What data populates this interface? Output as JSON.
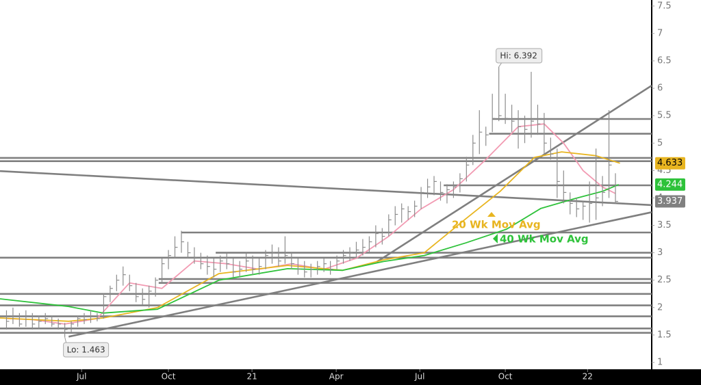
{
  "chart_data": {
    "type": "ohlc",
    "bar_color": "#8c8c8c",
    "line_color": "#7f7f7f",
    "x": [
      1,
      2,
      3,
      4,
      5,
      6,
      7,
      8,
      9,
      10,
      11,
      12,
      13,
      14,
      15,
      16,
      17,
      18,
      19,
      20,
      21,
      22,
      23,
      24,
      25,
      26,
      27,
      28,
      29,
      30,
      31,
      32,
      33,
      34,
      35,
      36,
      37,
      38,
      39,
      40,
      41,
      42,
      43,
      44,
      45,
      46,
      47,
      48,
      49,
      50,
      51,
      52,
      53,
      54,
      55,
      56,
      57,
      58,
      59,
      60,
      61,
      62,
      63,
      64,
      65,
      66,
      67,
      68,
      69,
      70,
      71,
      72,
      73,
      74,
      75,
      76,
      77,
      78,
      79,
      80,
      81,
      82,
      83,
      84,
      85,
      86,
      87,
      88,
      89,
      90,
      91,
      92,
      93,
      94,
      95
    ],
    "high": [
      1.95,
      2.0,
      1.9,
      1.95,
      1.9,
      1.85,
      1.9,
      1.85,
      1.8,
      1.72,
      1.75,
      1.85,
      1.9,
      1.95,
      1.9,
      2.25,
      2.4,
      2.6,
      2.75,
      2.6,
      2.45,
      2.35,
      2.4,
      2.55,
      2.9,
      3.05,
      3.3,
      3.4,
      3.2,
      3.1,
      3.0,
      2.95,
      2.9,
      2.95,
      3.0,
      2.9,
      2.85,
      3.0,
      2.95,
      2.9,
      3.05,
      3.15,
      3.1,
      3.3,
      3.0,
      2.9,
      2.85,
      2.8,
      2.85,
      2.9,
      2.85,
      2.95,
      3.05,
      3.1,
      3.2,
      3.25,
      3.3,
      3.5,
      3.45,
      3.7,
      3.85,
      3.9,
      3.85,
      3.95,
      4.2,
      4.35,
      4.4,
      4.3,
      4.25,
      4.3,
      4.45,
      4.75,
      5.15,
      5.6,
      5.3,
      5.9,
      6.392,
      5.9,
      5.7,
      5.6,
      5.5,
      6.3,
      5.7,
      5.55,
      5.1,
      4.9,
      4.5,
      4.1,
      4.0,
      3.95,
      4.3,
      4.9,
      4.4,
      5.6,
      4.45
    ],
    "low": [
      1.6,
      1.7,
      1.65,
      1.65,
      1.6,
      1.62,
      1.7,
      1.65,
      1.6,
      1.463,
      1.55,
      1.65,
      1.7,
      1.72,
      1.75,
      1.8,
      2.1,
      2.3,
      2.4,
      2.3,
      2.1,
      2.05,
      2.0,
      2.2,
      2.45,
      2.7,
      2.9,
      3.0,
      2.9,
      2.8,
      2.7,
      2.6,
      2.55,
      2.65,
      2.7,
      2.55,
      2.55,
      2.65,
      2.6,
      2.6,
      2.7,
      2.8,
      2.75,
      2.8,
      2.7,
      2.6,
      2.55,
      2.55,
      2.6,
      2.65,
      2.6,
      2.7,
      2.8,
      2.85,
      2.9,
      2.95,
      3.0,
      3.1,
      3.15,
      3.3,
      3.5,
      3.55,
      3.6,
      3.65,
      3.8,
      4.0,
      4.05,
      3.95,
      3.9,
      4.0,
      4.1,
      4.3,
      4.6,
      4.8,
      4.95,
      5.2,
      5.4,
      5.35,
      5.2,
      4.9,
      5.0,
      5.1,
      5.15,
      4.8,
      4.7,
      4.0,
      3.9,
      3.7,
      3.65,
      3.6,
      3.55,
      3.6,
      3.85,
      4.0,
      3.9
    ],
    "close": [
      1.75,
      1.85,
      1.7,
      1.85,
      1.7,
      1.75,
      1.8,
      1.7,
      1.7,
      1.6,
      1.7,
      1.8,
      1.78,
      1.85,
      1.8,
      2.2,
      2.35,
      2.5,
      2.6,
      2.4,
      2.2,
      2.15,
      2.3,
      2.5,
      2.8,
      2.95,
      3.1,
      3.2,
      3.0,
      2.9,
      2.8,
      2.75,
      2.7,
      2.85,
      2.8,
      2.65,
      2.7,
      2.85,
      2.7,
      2.75,
      2.95,
      3.0,
      2.85,
      2.95,
      2.8,
      2.7,
      2.65,
      2.7,
      2.75,
      2.8,
      2.7,
      2.85,
      2.95,
      3.0,
      3.05,
      3.1,
      3.2,
      3.35,
      3.3,
      3.6,
      3.7,
      3.8,
      3.75,
      3.85,
      4.1,
      4.2,
      4.3,
      4.1,
      4.15,
      4.2,
      4.35,
      4.6,
      5.0,
      5.2,
      5.15,
      5.45,
      5.5,
      5.45,
      5.4,
      5.3,
      5.25,
      5.4,
      5.35,
      5.0,
      4.8,
      4.3,
      4.1,
      3.9,
      3.8,
      3.85,
      3.9,
      4.0,
      4.1,
      4.6,
      3.937
    ],
    "series": [
      {
        "color": "#f29ab2",
        "x": [
          1,
          5,
          10,
          15,
          20,
          25,
          30,
          35,
          40,
          45,
          50,
          55,
          60,
          65,
          70,
          75,
          80,
          84,
          87,
          90,
          93,
          95
        ],
        "values": [
          1.8,
          1.78,
          1.7,
          1.8,
          2.45,
          2.35,
          2.85,
          2.8,
          2.7,
          2.8,
          2.7,
          2.9,
          3.3,
          3.8,
          4.15,
          4.7,
          5.3,
          5.35,
          5.0,
          4.5,
          4.2,
          4.08
        ]
      },
      {
        "name": "20 Wk Mov Avg",
        "color": "#e8b520",
        "x": [
          0,
          10.6,
          15.9,
          24.3,
          33.8,
          44.4,
          52.9,
          59.2,
          65.5,
          71.9,
          77.2,
          82.5,
          86.7,
          92,
          95.7
        ],
        "values": [
          1.81,
          1.75,
          1.81,
          2.0,
          2.62,
          2.77,
          2.68,
          2.87,
          3.0,
          3.62,
          4.12,
          4.74,
          4.84,
          4.77,
          4.633
        ]
      },
      {
        "name": "40 Wk Mov Avg",
        "color": "#2ec23a",
        "x": [
          0,
          10.6,
          15.9,
          24.3,
          33.8,
          44.4,
          52.9,
          59.2,
          65.5,
          71.9,
          78.2,
          83.5,
          88.8,
          93,
          95.5
        ],
        "values": [
          2.16,
          2.02,
          1.9,
          1.97,
          2.5,
          2.71,
          2.68,
          2.84,
          2.95,
          3.18,
          3.43,
          3.81,
          3.99,
          4.12,
          4.244
        ]
      }
    ],
    "lines": [
      {
        "x": [
          76,
          100.6
        ],
        "values": [
          5.44,
          5.44
        ]
      },
      {
        "x": [
          75.5,
          100.6
        ],
        "values": [
          5.17,
          5.17
        ]
      },
      {
        "x": [
          0,
          100.6
        ],
        "values": [
          4.73,
          4.73
        ]
      },
      {
        "x": [
          0,
          100.6
        ],
        "values": [
          4.67,
          4.67
        ]
      },
      {
        "x": [
          68.5,
          100.6
        ],
        "values": [
          4.23,
          4.23
        ]
      },
      {
        "x": [
          28,
          100.6
        ],
        "values": [
          3.37,
          3.37
        ]
      },
      {
        "x": [
          33.3,
          100.6
        ],
        "values": [
          3.0,
          3.0
        ]
      },
      {
        "x": [
          0,
          100.6
        ],
        "values": [
          2.91,
          2.91
        ]
      },
      {
        "x": [
          24.5,
          100.6
        ],
        "values": [
          2.52,
          2.52
        ]
      },
      {
        "x": [
          24.5,
          100.6
        ],
        "values": [
          2.45,
          2.45
        ]
      },
      {
        "x": [
          0,
          100.6
        ],
        "values": [
          2.25,
          2.25
        ]
      },
      {
        "x": [
          0,
          100.6
        ],
        "values": [
          2.04,
          2.04
        ]
      },
      {
        "x": [
          0,
          100.6
        ],
        "values": [
          1.84,
          1.84
        ]
      },
      {
        "x": [
          0,
          100.6
        ],
        "values": [
          1.62,
          1.62
        ]
      },
      {
        "x": [
          0,
          100.6
        ],
        "values": [
          1.54,
          1.54
        ]
      },
      {
        "x": [
          0,
          100.6
        ],
        "values": [
          4.49,
          3.87
        ]
      },
      {
        "x": [
          10.6,
          100.6
        ],
        "values": [
          1.47,
          3.74
        ]
      },
      {
        "x": [
          58.1,
          100.6
        ],
        "values": [
          2.83,
          6.05
        ]
      }
    ],
    "annotations": {
      "high": "Hi: 6.392",
      "low": "Lo: 1.463"
    },
    "xlim": [
      0,
      100.6
    ],
    "xticks": [
      {
        "value": 12.6,
        "label": "Jul"
      },
      {
        "value": 26,
        "label": "Oct"
      },
      {
        "value": 38.9,
        "label": "21"
      },
      {
        "value": 51.9,
        "label": "Apr"
      },
      {
        "value": 64.8,
        "label": "Jul"
      },
      {
        "value": 78,
        "label": "Oct"
      },
      {
        "value": 90.7,
        "label": "22"
      }
    ],
    "ylim": [
      0.875,
      7.61
    ],
    "yticks": [
      1,
      1.5,
      2,
      2.5,
      3,
      3.5,
      4,
      4.5,
      5,
      5.5,
      6,
      6.5,
      7,
      7.5
    ]
  }
}
